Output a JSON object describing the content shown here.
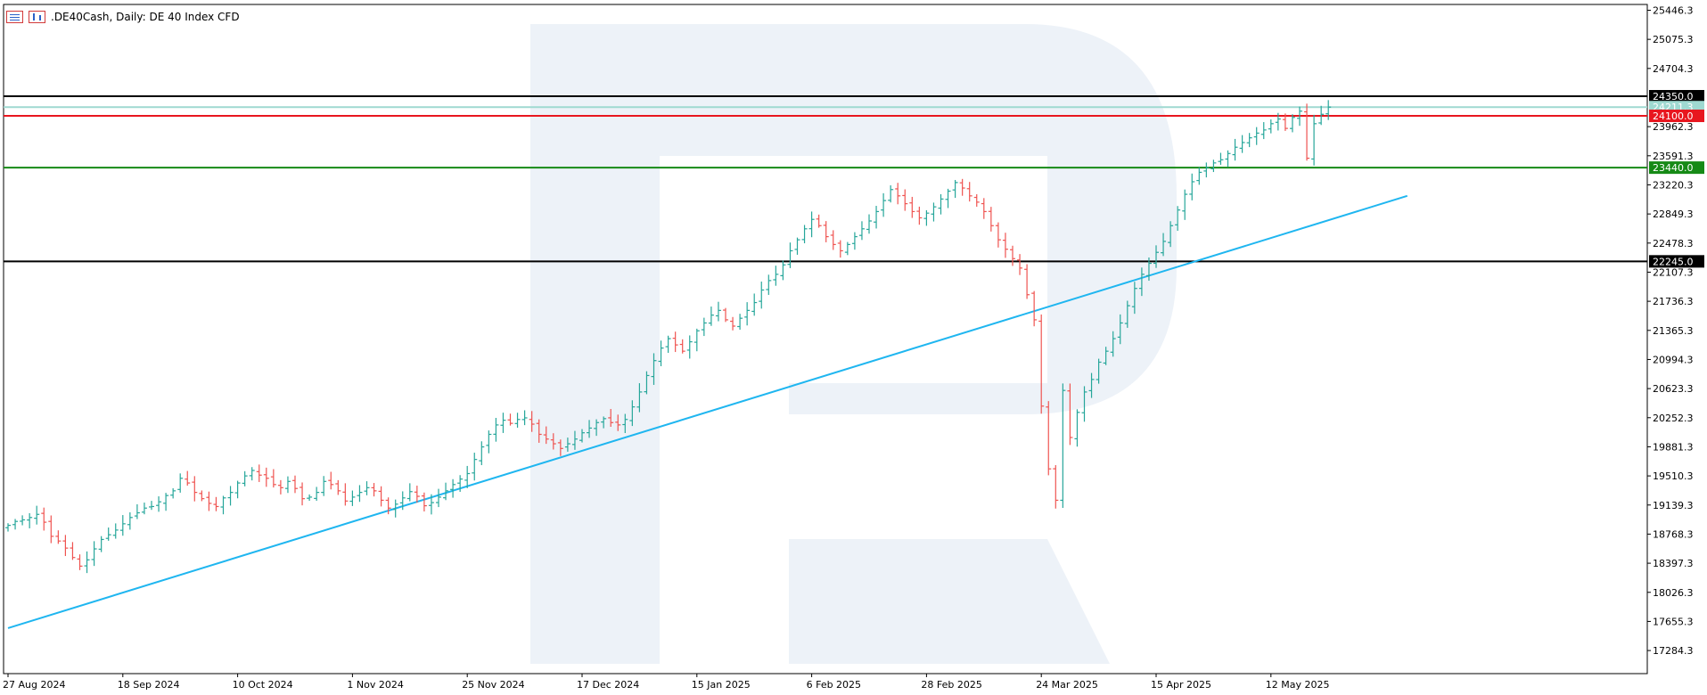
{
  "header": {
    "title": ".DE40Cash, Daily:  DE 40 Index CFD",
    "list_icon": "symbol-list-icon",
    "chart_icon": "bar-chart-icon"
  },
  "colors": {
    "bull": "#26a69a",
    "bear": "#ef5350",
    "trendline": "#1fb6f0",
    "resistance_red": "#e8161f",
    "support_green": "#168a16",
    "level_black": "#000000",
    "level_light": "#9fd9d1",
    "watermark": "#edf2f8"
  },
  "chart_data": {
    "type": "ohlc",
    "symbol": ".DE40Cash",
    "timeframe": "Daily",
    "description": "DE 40 Index CFD",
    "ylim": [
      16990,
      25520
    ],
    "y_ticks": [
      25446.3,
      25075.3,
      24704.3,
      23962.3,
      23591.3,
      23220.3,
      22849.3,
      22478.3,
      22107.3,
      21736.3,
      21365.3,
      20994.3,
      20623.3,
      20252.3,
      19881.3,
      19510.3,
      19139.3,
      18768.3,
      18397.3,
      18026.3,
      17655.3,
      17284.3
    ],
    "x_labels": [
      {
        "bar": 0,
        "text": "27 Aug 2024"
      },
      {
        "bar": 16,
        "text": "18 Sep 2024"
      },
      {
        "bar": 32,
        "text": "10 Oct 2024"
      },
      {
        "bar": 48,
        "text": "1 Nov 2024"
      },
      {
        "bar": 64,
        "text": "25 Nov 2024"
      },
      {
        "bar": 80,
        "text": "17 Dec 2024"
      },
      {
        "bar": 96,
        "text": "15 Jan 2025"
      },
      {
        "bar": 112,
        "text": "6 Feb 2025"
      },
      {
        "bar": 128,
        "text": "28 Feb 2025"
      },
      {
        "bar": 144,
        "text": "24 Mar 2025"
      },
      {
        "bar": 160,
        "text": "15 Apr 2025"
      },
      {
        "bar": 176,
        "text": "12 May 2025"
      }
    ],
    "levels": [
      {
        "price": 24350.0,
        "label": "24350.0",
        "color": "#000000",
        "label_bg": "#000000",
        "label_fg": "#ffffff"
      },
      {
        "price": 24211.3,
        "label": "24211.3",
        "color": "#9fd9d1",
        "label_bg": "#9fd9d1",
        "label_fg": "#ffffff"
      },
      {
        "price": 24100.0,
        "label": "24100.0",
        "color": "#e8161f",
        "label_bg": "#e8161f",
        "label_fg": "#ffffff"
      },
      {
        "price": 23440.0,
        "label": "23440.0",
        "color": "#168a16",
        "label_bg": "#168a16",
        "label_fg": "#ffffff"
      },
      {
        "price": 22245.0,
        "label": "22245.0",
        "color": "#000000",
        "label_bg": "#000000",
        "label_fg": "#ffffff"
      }
    ],
    "trendline": {
      "from": {
        "bar": 0,
        "price": 17570
      },
      "to": {
        "bar": 195,
        "price": 23080
      }
    },
    "closes": [
      18880,
      18930,
      18950,
      18980,
      19020,
      18920,
      18740,
      18680,
      18590,
      18470,
      18360,
      18440,
      18580,
      18700,
      18760,
      18820,
      18900,
      18980,
      19040,
      19100,
      19120,
      19180,
      19260,
      19320,
      19480,
      19420,
      19300,
      19220,
      19160,
      19120,
      19230,
      19300,
      19420,
      19510,
      19580,
      19520,
      19480,
      19400,
      19360,
      19440,
      19350,
      19220,
      19240,
      19300,
      19440,
      19400,
      19320,
      19190,
      19240,
      19300,
      19360,
      19320,
      19200,
      19100,
      19150,
      19230,
      19310,
      19250,
      19130,
      19170,
      19240,
      19320,
      19400,
      19470,
      19540,
      19720,
      19880,
      20040,
      20160,
      20220,
      20180,
      20230,
      20250,
      20170,
      20040,
      19980,
      19920,
      19860,
      19920,
      19980,
      20060,
      20120,
      20190,
      20240,
      20190,
      20160,
      20230,
      20390,
      20580,
      20790,
      20980,
      21140,
      21260,
      21180,
      21100,
      21220,
      21360,
      21460,
      21560,
      21620,
      21500,
      21420,
      21520,
      21620,
      21720,
      21880,
      22000,
      22080,
      22200,
      22380,
      22520,
      22660,
      22780,
      22700,
      22560,
      22460,
      22380,
      22460,
      22560,
      22660,
      22760,
      22880,
      23020,
      23160,
      23080,
      22980,
      22880,
      22800,
      22860,
      22940,
      23040,
      23140,
      23250,
      23180,
      23080,
      23000,
      22880,
      22700,
      22520,
      22400,
      22280,
      22160,
      21820,
      21500,
      20400,
      19600,
      19200,
      20600,
      20000,
      20320,
      20580,
      20740,
      20960,
      21100,
      21260,
      21460,
      21680,
      21900,
      22080,
      22220,
      22360,
      22500,
      22700,
      22900,
      23100,
      23260,
      23380,
      23440,
      23500,
      23540,
      23620,
      23700,
      23760,
      23820,
      23880,
      23920,
      24000,
      24060,
      23940,
      24080,
      24160,
      23560,
      24000,
      24120,
      24211.3
    ]
  }
}
